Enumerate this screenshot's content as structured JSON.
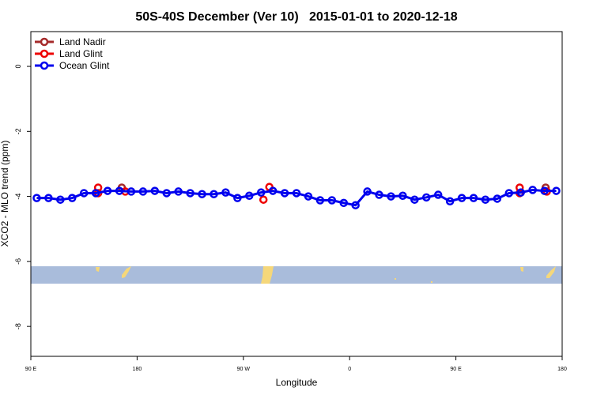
{
  "chart_data": {
    "type": "line",
    "title": "50S-40S December (Ver 10)   2015-01-01 to 2020-12-18",
    "xlabel": "Longitude",
    "ylabel": "XCO2 - MLO trend (ppm)",
    "xlim": [
      90,
      540
    ],
    "ylim": [
      -8.92,
      1.07
    ],
    "xticks": [
      {
        "value": 90,
        "label": "90 E"
      },
      {
        "value": 180,
        "label": "180"
      },
      {
        "value": 270,
        "label": "90 W"
      },
      {
        "value": 360,
        "label": "0"
      },
      {
        "value": 450,
        "label": "90 E"
      },
      {
        "value": 540,
        "label": "180"
      }
    ],
    "yticks": [
      0,
      -2,
      -4,
      -6,
      -8
    ],
    "legend": "top-left",
    "series": [
      {
        "name": "Land Nadir",
        "color": "#a52a2a",
        "line": false,
        "x": [
          167,
          526
        ],
        "values": [
          -3.73,
          -3.73
        ]
      },
      {
        "name": "Land Glint",
        "color": "#ee0000",
        "line": false,
        "x": [
          147,
          147,
          170,
          287,
          292,
          504,
          504,
          527
        ],
        "values": [
          -3.73,
          -3.9,
          -3.85,
          -4.1,
          -3.71,
          -3.73,
          -3.9,
          -3.85
        ]
      },
      {
        "name": "Ocean Glint",
        "color": "#0000ee",
        "line": true,
        "x": [
          95,
          105,
          115,
          125,
          135,
          145,
          155,
          165,
          175,
          185,
          195,
          205,
          215,
          225,
          235,
          245,
          255,
          265,
          275,
          285,
          295,
          305,
          315,
          325,
          335,
          345,
          355,
          365,
          375,
          385,
          395,
          405,
          415,
          425,
          435,
          445,
          455,
          465,
          475,
          485,
          495,
          505,
          515,
          525,
          535
        ],
        "values": [
          -4.05,
          -4.05,
          -4.1,
          -4.05,
          -3.9,
          -3.9,
          -3.83,
          -3.83,
          -3.85,
          -3.85,
          -3.83,
          -3.9,
          -3.85,
          -3.9,
          -3.93,
          -3.93,
          -3.88,
          -4.05,
          -3.98,
          -3.88,
          -3.83,
          -3.9,
          -3.9,
          -4.0,
          -4.12,
          -4.12,
          -4.2,
          -4.27,
          -3.85,
          -3.95,
          -4.0,
          -3.98,
          -4.1,
          -4.03,
          -3.95,
          -4.15,
          -4.05,
          -4.05,
          -4.1,
          -4.07,
          -3.9,
          -3.88,
          -3.8,
          -3.83,
          -3.83
        ]
      }
    ]
  }
}
